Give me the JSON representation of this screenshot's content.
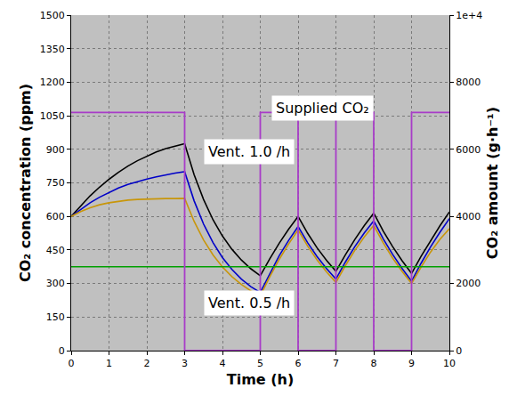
{
  "chart_data": {
    "type": "line",
    "x_label": "Time (h)",
    "y_label": "CO₂ concentration (ppm)",
    "y2_label": "CO₂ amount (g·h⁻¹)",
    "xlim": [
      0,
      10
    ],
    "xticks": [
      0,
      1,
      2,
      3,
      4,
      5,
      6,
      7,
      8,
      9,
      10
    ],
    "ylim": [
      0,
      1500
    ],
    "yticks": [
      0,
      150,
      300,
      450,
      600,
      750,
      900,
      1050,
      1200,
      1350,
      1500
    ],
    "y2lim": [
      0,
      10000
    ],
    "y2ticks": [
      0,
      2000,
      4000,
      6000,
      8000,
      {
        "value": 10000,
        "label": "1e+4"
      }
    ],
    "grid": true,
    "annotations": [
      "Supplied CO₂",
      "Vent. 1.0 /h",
      "Vent. 0.5 /h"
    ],
    "series": [
      {
        "color": "#000000",
        "type": "line",
        "x": [
          0,
          0.25,
          0.5,
          0.75,
          1,
          1.25,
          1.5,
          1.75,
          2,
          2.25,
          2.5,
          2.75,
          3,
          3.25,
          3.5,
          3.75,
          4,
          4.25,
          4.5,
          4.75,
          5,
          5.25,
          5.5,
          5.75,
          6,
          6.25,
          6.5,
          6.75,
          7,
          7.25,
          7.5,
          7.75,
          8,
          8.25,
          8.5,
          8.75,
          9,
          9.25,
          9.5,
          9.75,
          10
        ],
        "values": [
          600,
          648,
          692,
          731,
          766,
          797,
          825,
          849,
          870,
          888,
          903,
          915,
          925,
          787,
          676,
          585,
          512,
          453,
          405,
          366,
          335,
          410,
          480,
          543,
          600,
          525,
          460,
          404,
          355,
          428,
          497,
          559,
          615,
          535,
          465,
          402,
          345,
          421,
          492,
          558,
          620
        ]
      },
      {
        "color": "#0000c8",
        "type": "line",
        "x": [
          0,
          0.25,
          0.5,
          0.75,
          1,
          1.25,
          1.5,
          1.75,
          2,
          2.25,
          2.5,
          2.75,
          3,
          3.25,
          3.5,
          3.75,
          4,
          4.25,
          4.5,
          4.75,
          5,
          5.25,
          5.5,
          5.75,
          6,
          6.25,
          6.5,
          6.75,
          7,
          7.25,
          7.5,
          7.75,
          8,
          8.25,
          8.5,
          8.75,
          9,
          9.25,
          9.5,
          9.75,
          10
        ],
        "values": [
          600,
          632,
          661,
          686,
          708,
          727,
          743,
          756,
          767,
          777,
          786,
          794,
          800,
          670,
          566,
          483,
          416,
          363,
          320,
          286,
          260,
          345,
          424,
          493,
          555,
          483,
          421,
          367,
          320,
          396,
          465,
          526,
          580,
          500,
          430,
          367,
          310,
          390,
          463,
          529,
          590
        ]
      },
      {
        "color": "#c8960a",
        "type": "line",
        "x": [
          0,
          0.25,
          0.5,
          0.75,
          1,
          1.25,
          1.5,
          1.75,
          2,
          2.25,
          2.5,
          2.75,
          3,
          3.25,
          3.5,
          3.75,
          4,
          4.25,
          4.5,
          4.75,
          5,
          5.25,
          5.5,
          5.75,
          6,
          6.25,
          6.5,
          6.75,
          7,
          7.25,
          7.5,
          7.75,
          8,
          8.25,
          8.5,
          8.75,
          9,
          9.25,
          9.5,
          9.75,
          10
        ],
        "values": [
          600,
          622,
          639,
          652,
          661,
          668,
          673,
          676,
          678,
          679,
          680,
          680,
          681,
          578,
          495,
          428,
          374,
          331,
          296,
          267,
          245,
          330,
          408,
          477,
          540,
          468,
          406,
          352,
          305,
          380,
          448,
          508,
          560,
          482,
          414,
          354,
          300,
          373,
          440,
          497,
          545
        ]
      },
      {
        "color": "#00a000",
        "type": "line",
        "x": [
          0,
          10
        ],
        "values": [
          375,
          375
        ]
      },
      {
        "color": "#a83cc8",
        "type": "step",
        "axis": "y2",
        "x": [
          0,
          3,
          5,
          6,
          7,
          8,
          9,
          10
        ],
        "values": [
          7100,
          0,
          7100,
          0,
          7100,
          0,
          7100,
          7100
        ]
      }
    ]
  }
}
